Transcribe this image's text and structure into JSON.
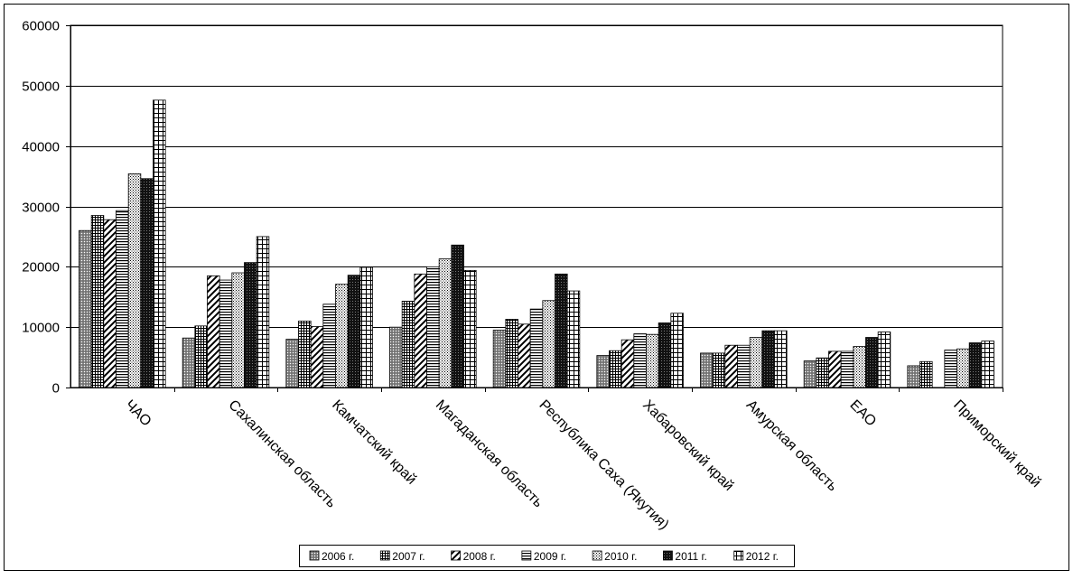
{
  "chart_data": {
    "type": "bar",
    "title": "",
    "xlabel": "",
    "ylabel": "",
    "ylim": [
      0,
      60000
    ],
    "yticks": [
      "0",
      "10000",
      "20000",
      "30000",
      "40000",
      "50000",
      "60000"
    ],
    "grid": true,
    "legend_position": "bottom",
    "categories": [
      "ЧАО",
      "Сахалинская область",
      "Камчатский край",
      "Магаданская область",
      "Республика Саха (Якутия)",
      "Хабаровский край",
      "Амурская область",
      "ЕАО",
      "Приморский край"
    ],
    "series": [
      {
        "name": "2006 г.",
        "pattern": "dots-gray",
        "values": [
          26000,
          8200,
          8000,
          10000,
          9500,
          5300,
          5700,
          4400,
          3600
        ]
      },
      {
        "name": "2007 г.",
        "pattern": "grid-fine",
        "values": [
          28500,
          10200,
          11000,
          14300,
          11300,
          6100,
          5700,
          4900,
          4300
        ]
      },
      {
        "name": "2008 г.",
        "pattern": "diagonal",
        "values": [
          27800,
          18500,
          10100,
          18800,
          10500,
          7900,
          7000,
          6000,
          null
        ]
      },
      {
        "name": "2009 г.",
        "pattern": "hlines",
        "values": [
          29300,
          17800,
          13800,
          20000,
          13000,
          8900,
          7000,
          6000,
          6200
        ]
      },
      {
        "name": "2010 г.",
        "pattern": "dots-light",
        "values": [
          35400,
          19000,
          17100,
          21300,
          14400,
          8800,
          8300,
          6800,
          6400
        ]
      },
      {
        "name": "2011 г.",
        "pattern": "dark-check",
        "values": [
          34600,
          20700,
          18600,
          23600,
          18800,
          10700,
          9400,
          8300,
          7400
        ]
      },
      {
        "name": "2012 г.",
        "pattern": "grid-large",
        "values": [
          47600,
          25000,
          19900,
          19400,
          16000,
          12300,
          9400,
          9200,
          7700
        ]
      }
    ]
  }
}
